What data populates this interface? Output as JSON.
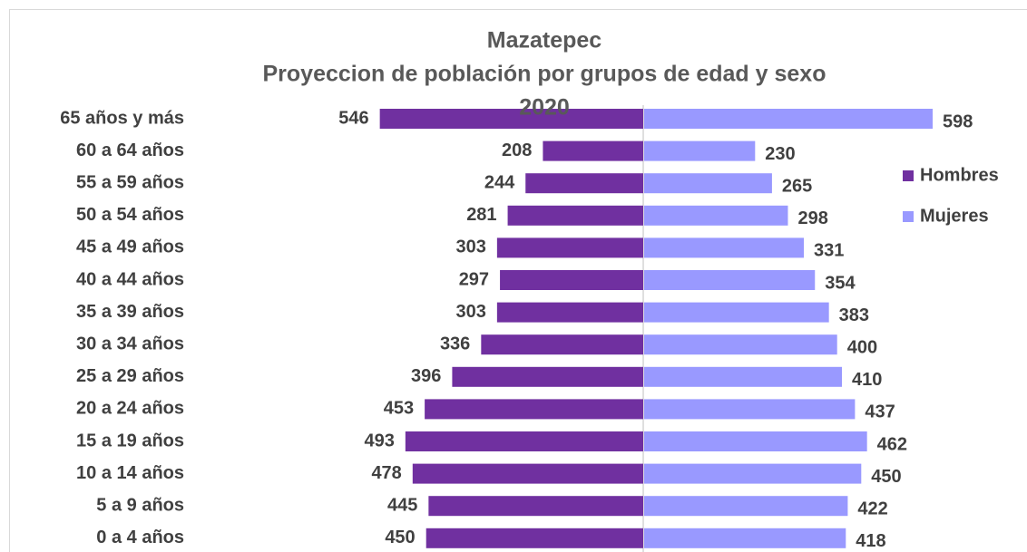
{
  "chart_data": {
    "type": "bar",
    "orientation": "horizontal-diverging",
    "title": [
      "Mazatepec",
      "Proyeccion de población por grupos de edad y sexo",
      "2020"
    ],
    "categories": [
      "65 años y más",
      "60 a 64 años",
      "55 a 59 años",
      "50 a 54 años",
      "45 a 49 años",
      "40 a 44 años",
      "35 a 39 años",
      "30 a 34 años",
      "25 a 29 años",
      "20 a 24 años",
      "15 a 19 años",
      "10 a 14 años",
      "5 a 9 años",
      "0 a 4 años"
    ],
    "series": [
      {
        "name": "Hombres",
        "color": "#7030a0",
        "values": [
          546,
          208,
          244,
          281,
          303,
          297,
          303,
          336,
          396,
          453,
          493,
          478,
          445,
          450
        ]
      },
      {
        "name": "Mujeres",
        "color": "#9999ff",
        "values": [
          598,
          230,
          265,
          298,
          331,
          354,
          383,
          400,
          410,
          437,
          462,
          450,
          422,
          418
        ]
      }
    ],
    "legend": "right"
  }
}
